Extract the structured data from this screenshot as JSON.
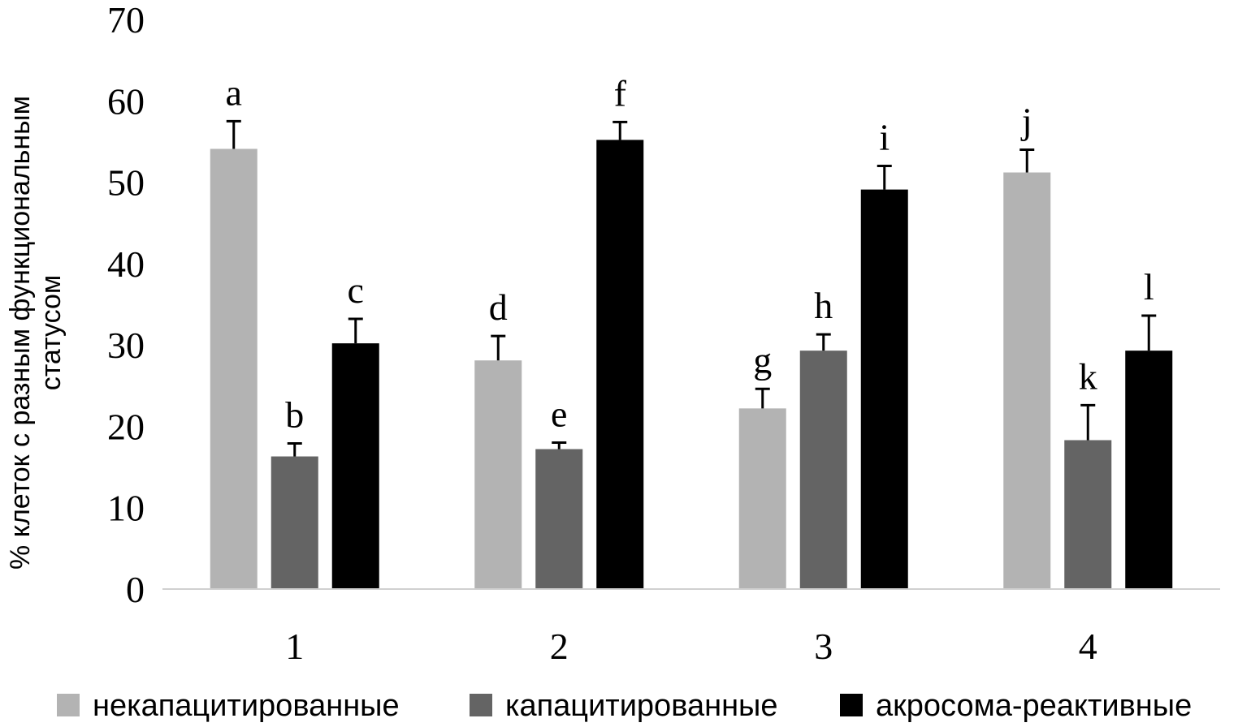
{
  "chart_data": {
    "type": "bar",
    "categories": [
      "1",
      "2",
      "3",
      "4"
    ],
    "ylabel_lines": [
      "% клеток с разным функциональным",
      "статусом"
    ],
    "xlabel": "",
    "ylim": [
      0,
      70
    ],
    "yticks": [
      "0",
      "10",
      "20",
      "30",
      "40",
      "50",
      "60",
      "70"
    ],
    "grid": false,
    "legend_position": "bottom",
    "series": [
      {
        "name": "некапацитированные",
        "color": "#b3b3b3",
        "values": [
          54.1,
          28.1,
          22.2,
          51.2
        ],
        "errors": [
          3.4,
          3.0,
          2.4,
          2.8
        ],
        "labels": [
          "a",
          "d",
          "g",
          "j"
        ]
      },
      {
        "name": "капацитированные",
        "color": "#646464",
        "values": [
          16.3,
          17.2,
          29.3,
          18.3
        ],
        "errors": [
          1.6,
          0.8,
          2.0,
          4.3
        ],
        "labels": [
          "b",
          "e",
          "h",
          "k"
        ]
      },
      {
        "name": "акросома-реактивные",
        "color": "#000000",
        "values": [
          30.2,
          55.2,
          49.1,
          29.3
        ],
        "errors": [
          3.0,
          2.2,
          2.9,
          4.3
        ],
        "labels": [
          "c",
          "f",
          "i",
          "l"
        ]
      }
    ]
  }
}
